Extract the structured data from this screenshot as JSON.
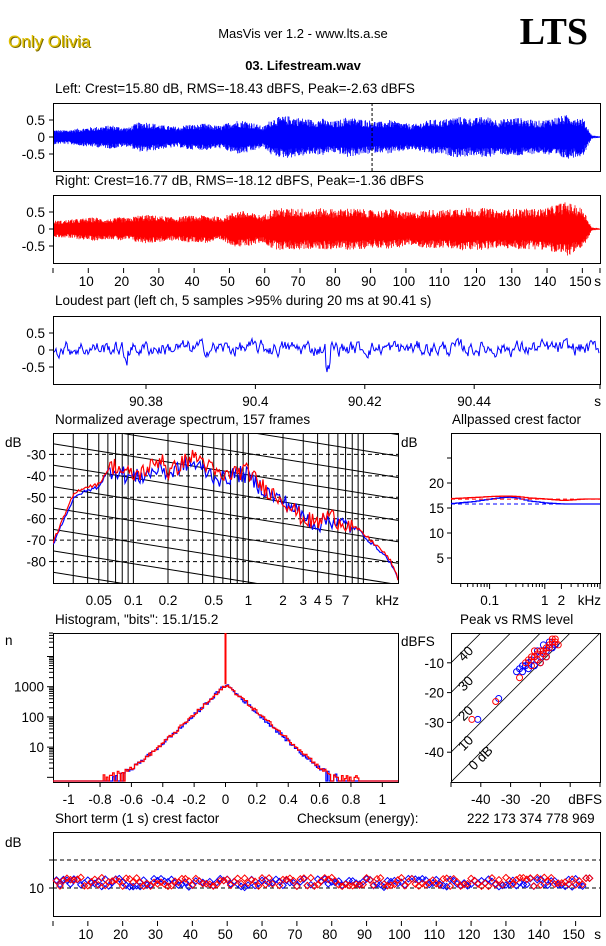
{
  "header": {
    "album_label": "Only Olivia",
    "app_title": "MasVis ver 1.2 - www.lts.a.se",
    "logo": "LTS",
    "file_title": "03. Lifestream.wav"
  },
  "colors": {
    "left": "#0000ff",
    "right": "#ff0000",
    "axis": "#000000",
    "background": "#ffffff",
    "label": "#e0c000"
  },
  "chart_data": [
    {
      "id": "left-waveform",
      "type": "area",
      "title": "Left: Crest=15.80 dB, RMS=-18.43 dBFS, Peak=-2.63 dBFS",
      "ylim": [
        -1,
        1
      ],
      "xlim": [
        0,
        155
      ],
      "ytick_labels": [
        "0.5",
        "0",
        "-0.5"
      ],
      "yticks": [
        0.5,
        0,
        -0.5
      ],
      "marker_time": 90.41,
      "envelope_peak": [
        0.22,
        0.2,
        0.22,
        0.25,
        0.28,
        0.3,
        0.32,
        0.35,
        0.3,
        0.28,
        0.42,
        0.45,
        0.4,
        0.35,
        0.32,
        0.3,
        0.38,
        0.36,
        0.4,
        0.35,
        0.33,
        0.45,
        0.5,
        0.48,
        0.4,
        0.3,
        0.55,
        0.6,
        0.62,
        0.58,
        0.55,
        0.5,
        0.55,
        0.45,
        0.5,
        0.6,
        0.55,
        0.52,
        0.48,
        0.45,
        0.5,
        0.45,
        0.4,
        0.38,
        0.45,
        0.52,
        0.5,
        0.55,
        0.6,
        0.58,
        0.55,
        0.6,
        0.58,
        0.5,
        0.55,
        0.58,
        0.55,
        0.5,
        0.48,
        0.55,
        0.6,
        0.65,
        0.6,
        0.55,
        0.05,
        0.02
      ],
      "series": [
        {
          "name": "Left",
          "color": "#0000ff"
        }
      ]
    },
    {
      "id": "right-waveform",
      "type": "area",
      "title": "Right: Crest=16.77 dB, RMS=-18.12 dBFS, Peak=-1.36 dBFS",
      "ylim": [
        -1,
        1
      ],
      "xlim": [
        0,
        155
      ],
      "ytick_labels": [
        "0.5",
        "0",
        "-0.5"
      ],
      "yticks": [
        0.5,
        0,
        -0.5
      ],
      "xticks": [
        10,
        20,
        30,
        40,
        50,
        60,
        70,
        80,
        90,
        100,
        110,
        120,
        130,
        140,
        150
      ],
      "xtick_labels": [
        "10",
        "20",
        "30",
        "40",
        "50",
        "60",
        "70",
        "80",
        "90",
        "100",
        "110",
        "120",
        "130",
        "140",
        "150"
      ],
      "xunit": "s",
      "envelope_peak": [
        0.25,
        0.25,
        0.28,
        0.3,
        0.32,
        0.35,
        0.3,
        0.3,
        0.35,
        0.32,
        0.4,
        0.42,
        0.4,
        0.38,
        0.35,
        0.35,
        0.4,
        0.38,
        0.42,
        0.38,
        0.35,
        0.45,
        0.55,
        0.52,
        0.45,
        0.4,
        0.58,
        0.62,
        0.6,
        0.62,
        0.6,
        0.58,
        0.62,
        0.6,
        0.58,
        0.62,
        0.6,
        0.58,
        0.55,
        0.55,
        0.6,
        0.55,
        0.5,
        0.5,
        0.55,
        0.58,
        0.55,
        0.58,
        0.62,
        0.65,
        0.6,
        0.62,
        0.6,
        0.55,
        0.58,
        0.6,
        0.6,
        0.6,
        0.6,
        0.65,
        0.75,
        0.8,
        0.7,
        0.6,
        0.05,
        0.02
      ],
      "series": [
        {
          "name": "Right",
          "color": "#ff0000"
        }
      ]
    },
    {
      "id": "loudest-part",
      "type": "line",
      "title": "Loudest part (left  ch, 5 samples >95% during 20 ms at 90.41 s)",
      "ylim": [
        -1,
        1
      ],
      "xlim": [
        90.363,
        90.463
      ],
      "yticks": [
        0.5,
        0,
        -0.5
      ],
      "ytick_labels": [
        "0.5",
        "0",
        "-0.5"
      ],
      "xticks": [
        90.38,
        90.4,
        90.42,
        90.44
      ],
      "xtick_labels": [
        "90.38",
        "90.4",
        "90.42",
        "90.44"
      ],
      "xunit": "s",
      "series": [
        {
          "name": "Left",
          "color": "#0000ff"
        }
      ]
    },
    {
      "id": "spectrum",
      "type": "line",
      "title": "Normalized average spectrum, 157 frames",
      "ylabel": "dB",
      "xlabel": "kHz",
      "xscale": "log",
      "xlim": [
        0.02,
        20
      ],
      "ylim": [
        -90,
        -20
      ],
      "yticks": [
        -30,
        -40,
        -50,
        -60,
        -70,
        -80
      ],
      "ytick_labels": [
        "-30",
        "-40",
        "-50",
        "-60",
        "-70",
        "-80"
      ],
      "xtick_labels": [
        "0.05",
        "0.1",
        "0.2",
        "0.5",
        "1",
        "2",
        "3",
        "4",
        "5",
        "7",
        "kHz"
      ],
      "xticks": [
        0.05,
        0.1,
        0.2,
        0.5,
        1,
        2,
        3,
        4,
        5,
        7
      ],
      "series": [
        {
          "name": "Left",
          "color": "#0000ff",
          "x": [
            0.02,
            0.025,
            0.03,
            0.035,
            0.04,
            0.05,
            0.06,
            0.07,
            0.08,
            0.1,
            0.12,
            0.15,
            0.18,
            0.2,
            0.25,
            0.3,
            0.35,
            0.4,
            0.5,
            0.6,
            0.7,
            0.8,
            1.0,
            1.2,
            1.5,
            2.0,
            2.5,
            3.0,
            4.0,
            5.0,
            6.0,
            7.0,
            9.0,
            11,
            14,
            17,
            20
          ],
          "y": [
            -72,
            -60,
            -51,
            -48,
            -47,
            -45,
            -38,
            -37,
            -39,
            -41,
            -40,
            -38,
            -36,
            -40,
            -36,
            -34,
            -35,
            -37,
            -40,
            -42,
            -40,
            -39,
            -40,
            -44,
            -48,
            -52,
            -55,
            -59,
            -63,
            -60,
            -62,
            -63,
            -65,
            -70,
            -75,
            -80,
            -88
          ]
        },
        {
          "name": "Right",
          "color": "#ff0000",
          "x": [
            0.02,
            0.025,
            0.03,
            0.035,
            0.04,
            0.05,
            0.06,
            0.07,
            0.08,
            0.1,
            0.12,
            0.15,
            0.18,
            0.2,
            0.25,
            0.3,
            0.35,
            0.4,
            0.5,
            0.6,
            0.7,
            0.8,
            1.0,
            1.2,
            1.5,
            2.0,
            2.5,
            3.0,
            4.0,
            5.0,
            6.0,
            7.0,
            9.0,
            11,
            14,
            17,
            20
          ],
          "y": [
            -71,
            -59,
            -49,
            -46,
            -45,
            -44,
            -37,
            -35,
            -38,
            -40,
            -38,
            -35,
            -31,
            -39,
            -35,
            -32,
            -31,
            -33,
            -38,
            -41,
            -39,
            -38,
            -38,
            -43,
            -47,
            -51,
            -56,
            -60,
            -62,
            -58,
            -61,
            -62,
            -65,
            -69,
            -74,
            -79,
            -88
          ]
        }
      ]
    },
    {
      "id": "allpassed-crest",
      "type": "line",
      "title": "Allpassed crest factor",
      "ylabel": "dB",
      "xlabel": "kHz",
      "xscale": "log",
      "xlim": [
        0.02,
        10
      ],
      "ylim": [
        0,
        30
      ],
      "yticks": [
        20,
        15,
        10,
        5
      ],
      "ytick_labels": [
        "20",
        "15",
        "10",
        "5"
      ],
      "xticks": [
        0.1,
        1,
        2
      ],
      "xtick_labels": [
        "0.1",
        "1",
        "2",
        "kHz"
      ],
      "series": [
        {
          "name": "Left",
          "color": "#0000ff",
          "x": [
            0.02,
            0.05,
            0.1,
            0.2,
            0.3,
            0.5,
            1,
            2,
            5,
            10
          ],
          "y": [
            15.9,
            16.3,
            16.8,
            17.2,
            17.0,
            16.4,
            16.0,
            15.8,
            15.8,
            15.8
          ],
          "reference": 15.8
        },
        {
          "name": "Right",
          "color": "#ff0000",
          "x": [
            0.02,
            0.05,
            0.1,
            0.2,
            0.3,
            0.5,
            1,
            2,
            5,
            10
          ],
          "y": [
            16.9,
            17.1,
            17.3,
            17.4,
            17.3,
            17.0,
            16.8,
            16.5,
            16.8,
            16.8
          ],
          "reference": 16.77
        }
      ]
    },
    {
      "id": "histogram",
      "type": "line",
      "title": "Histogram, \"bits\": 15.1/15.2",
      "ylabel": "n",
      "yscale": "log",
      "ylim": [
        0.7,
        60000
      ],
      "xlim": [
        -1.1,
        1.1
      ],
      "yticks": [
        1000,
        100,
        10
      ],
      "ytick_labels": [
        "1000",
        "100",
        "10"
      ],
      "xticks": [
        -1,
        -0.8,
        -0.6,
        -0.4,
        -0.2,
        0,
        0.2,
        0.4,
        0.6,
        0.8,
        1
      ],
      "xtick_labels": [
        "-1",
        "-0.8",
        "-0.6",
        "-0.4",
        "-0.2",
        "0",
        "0.2",
        "0.4",
        "0.6",
        "0.8",
        "1"
      ],
      "series": [
        {
          "name": "Left",
          "color": "#0000ff",
          "x": [
            -0.72,
            -0.6,
            -0.5,
            -0.4,
            -0.3,
            -0.2,
            -0.1,
            0,
            0.1,
            0.2,
            0.3,
            0.4,
            0.5,
            0.6,
            0.72
          ],
          "y": [
            1,
            2,
            5,
            14,
            40,
            120,
            380,
            1200,
            400,
            130,
            45,
            15,
            5,
            2,
            1
          ]
        },
        {
          "name": "Right",
          "color": "#ff0000",
          "x": [
            -0.8,
            -0.6,
            -0.5,
            -0.4,
            -0.3,
            -0.2,
            -0.1,
            0,
            0.1,
            0.2,
            0.3,
            0.4,
            0.5,
            0.6,
            0.7,
            0.85
          ],
          "y": [
            1,
            2,
            5,
            14,
            42,
            125,
            370,
            1150,
            420,
            140,
            50,
            17,
            6,
            2,
            1,
            1
          ]
        }
      ]
    },
    {
      "id": "peak-vs-rms",
      "type": "scatter",
      "title": "Peak vs RMS level",
      "ylabel": "dBFS",
      "xlabel": "dBFS",
      "xlim": [
        -50,
        0
      ],
      "ylim": [
        -50,
        0
      ],
      "yticks": [
        -10,
        -20,
        -30,
        -40
      ],
      "ytick_labels": [
        "-10",
        "-20",
        "-30",
        "-40"
      ],
      "xticks": [
        -40,
        -30,
        -20
      ],
      "xtick_labels": [
        "-40",
        "-30",
        "-20",
        "dBFS"
      ],
      "crest_lines": [
        0,
        10,
        20,
        30,
        40
      ],
      "crest_line_labels": [
        "0 dB",
        "10",
        "20",
        "30",
        "40"
      ],
      "series": [
        {
          "name": "Left",
          "color": "#0000ff",
          "x": [
            -41,
            -34,
            -28,
            -27,
            -26,
            -25,
            -24,
            -23,
            -22,
            -21,
            -20,
            -19,
            -18,
            -17,
            -16,
            -15,
            -24,
            -22,
            -20,
            -18,
            -26,
            -21,
            -19,
            -17
          ],
          "y": [
            -29,
            -22,
            -13,
            -12,
            -11,
            -11,
            -10,
            -9,
            -8,
            -9,
            -8,
            -7,
            -6,
            -5,
            -5,
            -4,
            -12,
            -11,
            -10,
            -8,
            -13,
            -6,
            -4,
            -3
          ]
        },
        {
          "name": "Right",
          "color": "#ff0000",
          "x": [
            -43,
            -35,
            -27,
            -25,
            -24,
            -23,
            -22,
            -21,
            -20,
            -19,
            -18,
            -17,
            -16,
            -15,
            -14,
            -23,
            -21,
            -19,
            -17,
            -16,
            -15,
            -20,
            -18,
            -22
          ],
          "y": [
            -29,
            -23,
            -15,
            -10,
            -9,
            -8,
            -8,
            -7,
            -6,
            -6,
            -5,
            -4,
            -3,
            -3,
            -4,
            -11,
            -9,
            -7,
            -5,
            -2,
            -2,
            -10,
            -8,
            -6
          ]
        }
      ]
    },
    {
      "id": "short-term-crest",
      "type": "scatter",
      "title": "Short term (1 s) crest factor",
      "ylabel": "dB",
      "ylim": [
        0,
        30
      ],
      "xlim": [
        0,
        157
      ],
      "yticks": [
        10
      ],
      "ytick_labels": [
        "10"
      ],
      "dashed_lines": [
        10,
        20
      ],
      "xticks": [
        10,
        20,
        30,
        40,
        50,
        60,
        70,
        80,
        90,
        100,
        110,
        120,
        130,
        140,
        150
      ],
      "xtick_labels": [
        "10",
        "20",
        "30",
        "40",
        "50",
        "60",
        "70",
        "80",
        "90",
        "100",
        "110",
        "120",
        "130",
        "140",
        "150"
      ],
      "xunit": "s",
      "series": [
        {
          "name": "Left",
          "color": "#0000ff"
        },
        {
          "name": "Right",
          "color": "#ff0000"
        }
      ]
    }
  ],
  "checksum": {
    "label": "Checksum (energy):",
    "value": "222 173 374 778 969"
  }
}
